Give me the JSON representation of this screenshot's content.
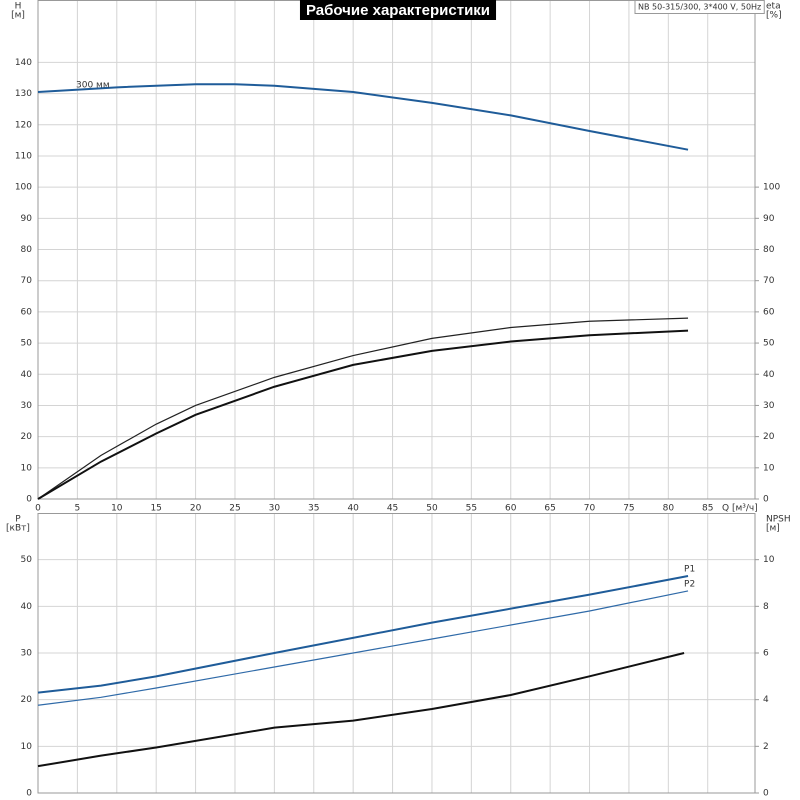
{
  "chart_data": [
    {
      "type": "line",
      "title": "Рабочие характеристики",
      "subtitle": "NB 50-315/300, 3*400 V, 50Hz",
      "ylabel": "H",
      "yunit": "[м]",
      "y2label": "eta",
      "y2unit": "[%]",
      "xlabel": "Q [м³/ч]",
      "xlim": [
        0,
        91
      ],
      "xticks": [
        0,
        5,
        10,
        15,
        20,
        25,
        30,
        35,
        40,
        45,
        50,
        55,
        60,
        65,
        70,
        75,
        80,
        85
      ],
      "show_xtick_labels": true,
      "ylim": [
        0,
        160
      ],
      "yticks": [
        0,
        10,
        20,
        30,
        40,
        50,
        60,
        70,
        80,
        90,
        100,
        110,
        120,
        130,
        140
      ],
      "y2lim": [
        0,
        160
      ],
      "y2ticks": [
        0,
        10,
        20,
        30,
        40,
        50,
        60,
        70,
        80,
        90,
        100
      ],
      "grid": true,
      "series": [
        {
          "name": "300 мм",
          "label_at": "start",
          "color": "#1f5c99",
          "width": 2,
          "axis": "y",
          "x": [
            0,
            10,
            20,
            25,
            30,
            40,
            50,
            60,
            70,
            82.5
          ],
          "values": [
            130.5,
            132,
            133,
            133,
            132.5,
            130.5,
            127,
            123,
            118,
            112
          ]
        },
        {
          "color": "#222222",
          "width": 1.2,
          "axis": "y2",
          "x": [
            0,
            8,
            15,
            20,
            30,
            40,
            50,
            60,
            70,
            82.5
          ],
          "values": [
            0,
            14,
            24,
            30,
            39,
            46,
            51.5,
            55,
            57,
            58
          ]
        },
        {
          "color": "#111111",
          "width": 2,
          "axis": "y2",
          "x": [
            0,
            8,
            15,
            20,
            30,
            40,
            50,
            60,
            70,
            82.5
          ],
          "values": [
            0,
            12,
            21,
            27,
            36,
            43,
            47.5,
            50.5,
            52.5,
            54
          ]
        }
      ]
    },
    {
      "type": "line",
      "ylabel": "P",
      "yunit": "[кВт]",
      "y2label": "NPSH",
      "y2unit": "[м]",
      "xlim": [
        0,
        91
      ],
      "xticks": [
        0,
        5,
        10,
        15,
        20,
        25,
        30,
        35,
        40,
        45,
        50,
        55,
        60,
        65,
        70,
        75,
        80,
        85
      ],
      "show_xtick_labels": false,
      "ylim": [
        0,
        60
      ],
      "yticks": [
        0,
        10,
        20,
        30,
        40,
        50
      ],
      "y2lim": [
        0,
        12
      ],
      "y2ticks": [
        0,
        2,
        4,
        6,
        8,
        10
      ],
      "grid": true,
      "series": [
        {
          "name": "P1",
          "label_at": "end",
          "color": "#1f5c99",
          "width": 2,
          "axis": "y",
          "x": [
            0,
            8,
            15,
            30,
            50,
            70,
            82.5
          ],
          "values": [
            21.5,
            23,
            25,
            30,
            36.5,
            42.5,
            46.5
          ]
        },
        {
          "name": "P2",
          "label_at": "end",
          "color": "#2f6aa8",
          "width": 1.2,
          "axis": "y",
          "x": [
            0,
            8,
            15,
            30,
            50,
            70,
            82.5
          ],
          "values": [
            18.8,
            20.5,
            22.5,
            27,
            33,
            39,
            43.3
          ]
        },
        {
          "color": "#111111",
          "width": 2,
          "axis": "y2",
          "x": [
            0,
            8,
            15,
            30,
            40,
            50,
            60,
            70,
            82
          ],
          "values": [
            1.15,
            1.6,
            1.95,
            2.8,
            3.1,
            3.6,
            4.2,
            5.0,
            6.0
          ]
        }
      ]
    }
  ]
}
